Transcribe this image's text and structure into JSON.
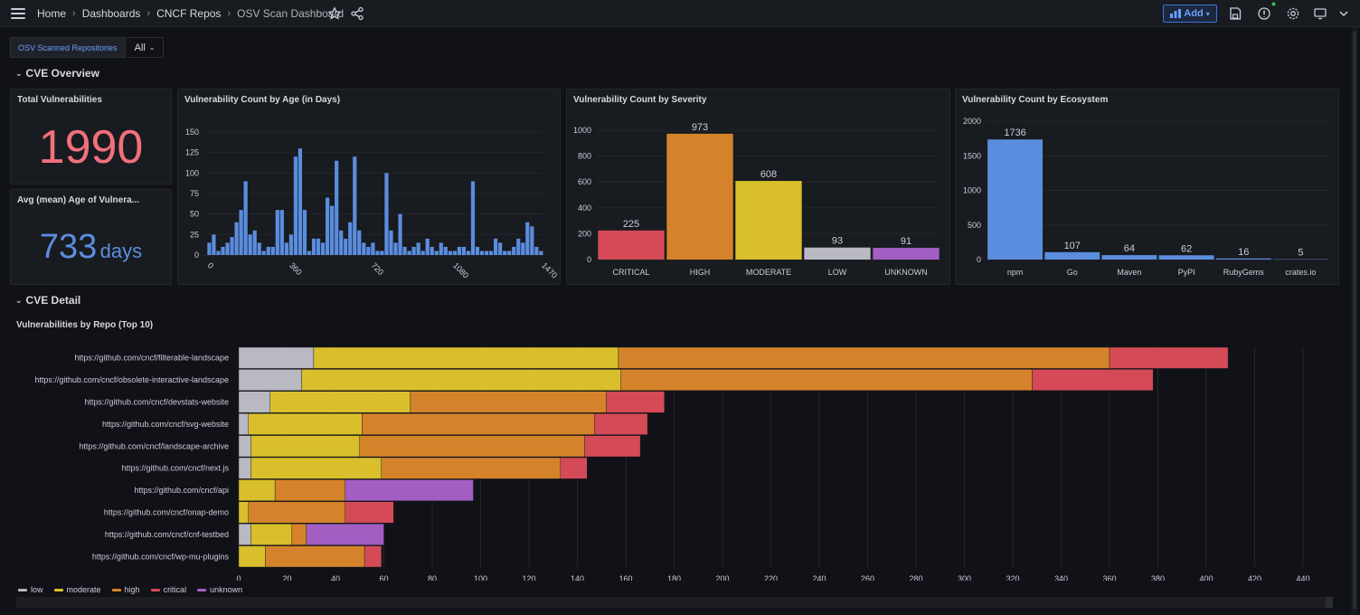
{
  "breadcrumb": [
    "Home",
    "Dashboards",
    "CNCF Repos",
    "OSV Scan Dashboard"
  ],
  "toolbar": {
    "add_label": "Add"
  },
  "filter": {
    "label": "OSV Scanned Repositories",
    "value": "All"
  },
  "rows": {
    "overview": "CVE Overview",
    "detail": "CVE Detail"
  },
  "colors": {
    "critical": "#d44a57",
    "high": "#d5832a",
    "moderate": "#d8bf2b",
    "low": "#b8b9c2",
    "unknown": "#a25ec2",
    "blue": "#5b8ddf",
    "stat_red": "#f2707b",
    "stat_blue": "#5b8ddf"
  },
  "stats": {
    "total_title": "Total Vulnerabilities",
    "total_value": "1990",
    "avg_title": "Avg (mean) Age of Vulnera...",
    "avg_value": "733",
    "avg_unit": "days"
  },
  "chart_data": [
    {
      "type": "bar",
      "title": "Vulnerability Count by Age (in Days)",
      "ylim": [
        0,
        150
      ],
      "yticks": [
        0,
        25,
        50,
        75,
        100,
        125,
        150
      ],
      "xticks": [
        {
          "v": 0,
          "label": "0"
        },
        {
          "v": 360,
          "label": "360"
        },
        {
          "v": 720,
          "label": "720"
        },
        {
          "v": 1080,
          "label": "1080"
        },
        {
          "v": 1470,
          "label": "1470"
        }
      ],
      "bin_days": 20,
      "values": [
        15,
        25,
        5,
        10,
        15,
        22,
        40,
        55,
        90,
        25,
        30,
        15,
        5,
        10,
        10,
        55,
        55,
        15,
        25,
        120,
        130,
        55,
        5,
        20,
        20,
        15,
        70,
        60,
        115,
        30,
        20,
        40,
        120,
        30,
        15,
        10,
        15,
        5,
        5,
        100,
        30,
        15,
        50,
        10,
        5,
        10,
        15,
        5,
        20,
        10,
        5,
        15,
        10,
        5,
        5,
        10,
        10,
        5,
        90,
        10,
        5,
        5,
        5,
        20,
        15,
        5,
        5,
        10,
        20,
        15,
        40,
        35,
        10,
        5
      ]
    },
    {
      "type": "bar",
      "title": "Vulnerability Count by Severity",
      "categories": [
        "CRITICAL",
        "HIGH",
        "MODERATE",
        "LOW",
        "UNKNOWN"
      ],
      "values": [
        225,
        973,
        608,
        93,
        91
      ],
      "value_labels": [
        "225",
        "973",
        "608",
        "93",
        "91"
      ],
      "ylim": [
        0,
        1000
      ],
      "yticks": [
        0,
        200,
        400,
        600,
        800,
        1000
      ]
    },
    {
      "type": "bar",
      "title": "Vulnerability Count by Ecosystem",
      "categories": [
        "npm",
        "Go",
        "Maven",
        "PyPI",
        "RubyGems",
        "crates.io"
      ],
      "values": [
        1736,
        107,
        64,
        62,
        16,
        5
      ],
      "value_labels": [
        "1736",
        "107",
        "64",
        "62",
        "16",
        "5"
      ],
      "ylim": [
        0,
        2000
      ],
      "yticks": [
        0,
        500,
        1000,
        1500,
        2000
      ]
    },
    {
      "type": "bar",
      "orientation": "horizontal-stacked",
      "title": "Vulnerabilities by Repo (Top 10)",
      "categories": [
        "https://github.com/cncf/filterable-landscape",
        "https://github.com/cncf/obsolete-interactive-landscape",
        "https://github.com/cncf/devstats-website",
        "https://github.com/cncf/svg-website",
        "https://github.com/cncf/landscape-archive",
        "https://github.com/cncf/next.js",
        "https://github.com/cncf/api",
        "https://github.com/cncf/onap-demo",
        "https://github.com/cncf/cnf-testbed",
        "https://github.com/cncf/wp-mu-plugins"
      ],
      "series": [
        {
          "name": "low",
          "key": "low",
          "values": [
            31,
            26,
            13,
            4,
            5,
            5,
            0,
            0,
            5,
            0
          ]
        },
        {
          "name": "moderate",
          "key": "moderate",
          "values": [
            126,
            132,
            58,
            47,
            45,
            54,
            15,
            4,
            17,
            11
          ]
        },
        {
          "name": "high",
          "key": "high",
          "values": [
            203,
            170,
            81,
            96,
            93,
            74,
            29,
            40,
            6,
            41
          ]
        },
        {
          "name": "critical",
          "key": "critical",
          "values": [
            49,
            50,
            24,
            22,
            23,
            11,
            0,
            20,
            0,
            7
          ]
        },
        {
          "name": "unknown",
          "key": "unknown",
          "values": [
            0,
            0,
            0,
            0,
            0,
            0,
            53,
            0,
            32,
            0
          ]
        }
      ],
      "xlim": [
        0,
        440
      ],
      "xticks": [
        0,
        20,
        40,
        60,
        80,
        100,
        120,
        140,
        160,
        180,
        200,
        220,
        240,
        260,
        280,
        300,
        320,
        340,
        360,
        380,
        400,
        420,
        440
      ]
    }
  ]
}
